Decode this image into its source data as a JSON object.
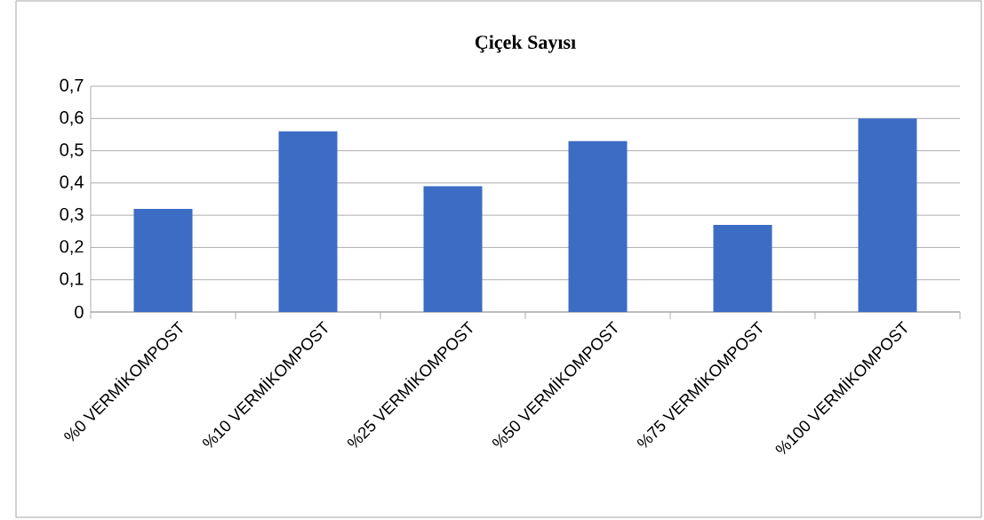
{
  "chart_data": {
    "type": "bar",
    "title": "Çiçek Sayısı",
    "categories": [
      "%0 VERMİKOMPOST",
      "%10 VERMİKOMPOST",
      "%25 VERMİKOMPOST",
      "%50 VERMİKOMPOST",
      "%75 VERMİKOMPOST",
      "%100 VERMİKOMPOST"
    ],
    "values": [
      0.32,
      0.56,
      0.39,
      0.53,
      0.27,
      0.6
    ],
    "color": "#3d6cc5",
    "ylim": [
      0,
      0.7
    ],
    "yticks": [
      {
        "value": 0,
        "label": "0"
      },
      {
        "value": 0.1,
        "label": "0,1"
      },
      {
        "value": 0.2,
        "label": "0,2"
      },
      {
        "value": 0.3,
        "label": "0,3"
      },
      {
        "value": 0.4,
        "label": "0,4"
      },
      {
        "value": 0.5,
        "label": "0,5"
      },
      {
        "value": 0.6,
        "label": "0,6"
      },
      {
        "value": 0.7,
        "label": "0,7"
      }
    ],
    "grid": "y"
  }
}
